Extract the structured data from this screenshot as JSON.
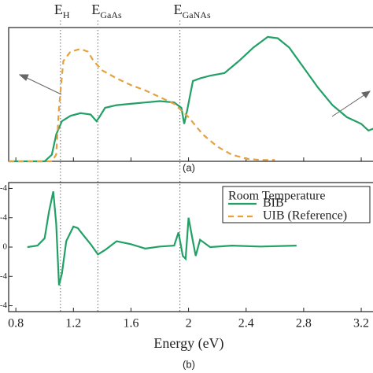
{
  "chart_data": [
    {
      "type": "line",
      "panel_label": "(a)",
      "xlim": [
        0.75,
        3.32
      ],
      "ylim": [
        0,
        1
      ],
      "xticks": [
        0.8,
        1.2,
        1.6,
        2.0,
        2.4,
        2.8,
        3.2
      ],
      "markers": [
        {
          "x": 1.11,
          "label": "E",
          "sub": "H"
        },
        {
          "x": 1.37,
          "label": "E",
          "sub": "GaAs"
        },
        {
          "x": 1.94,
          "label": "E",
          "sub": "GaNAs"
        }
      ],
      "series": [
        {
          "name": "BIB",
          "color": "#22a066",
          "dash": false,
          "x": [
            0.75,
            1.0,
            1.05,
            1.08,
            1.12,
            1.18,
            1.25,
            1.32,
            1.36,
            1.38,
            1.42,
            1.5,
            1.6,
            1.7,
            1.8,
            1.9,
            1.95,
            1.97,
            1.99,
            2.03,
            2.08,
            2.15,
            2.25,
            2.35,
            2.45,
            2.55,
            2.62,
            2.7,
            2.8,
            2.9,
            3.0,
            3.1,
            3.2,
            3.25,
            3.3
          ],
          "values": [
            0,
            0,
            0.05,
            0.2,
            0.3,
            0.34,
            0.36,
            0.35,
            0.3,
            0.33,
            0.4,
            0.42,
            0.43,
            0.44,
            0.45,
            0.44,
            0.4,
            0.28,
            0.38,
            0.6,
            0.62,
            0.64,
            0.66,
            0.75,
            0.85,
            0.93,
            0.92,
            0.85,
            0.7,
            0.55,
            0.42,
            0.33,
            0.28,
            0.23,
            0.25
          ]
        },
        {
          "name": "UIB (Reference)",
          "color": "#e5a040",
          "dash": true,
          "x": [
            0.75,
            1.05,
            1.08,
            1.1,
            1.13,
            1.18,
            1.25,
            1.3,
            1.34,
            1.4,
            1.5,
            1.6,
            1.7,
            1.8,
            1.9,
            2.0,
            2.1,
            2.2,
            2.3,
            2.4,
            2.5,
            2.6
          ],
          "values": [
            0,
            0,
            0.05,
            0.4,
            0.75,
            0.82,
            0.84,
            0.82,
            0.75,
            0.68,
            0.62,
            0.57,
            0.53,
            0.48,
            0.43,
            0.33,
            0.2,
            0.11,
            0.05,
            0.02,
            0.01,
            0.01
          ]
        }
      ]
    },
    {
      "type": "line",
      "panel_label": "(b)",
      "xlabel": "Energy (eV)",
      "legend_title": "Room Temperature",
      "xlim": [
        0.75,
        3.32
      ],
      "ylim": [
        -2.2,
        2.2
      ],
      "xticks": [
        0.8,
        1.2,
        1.6,
        2.0,
        2.4,
        2.8,
        3.2
      ],
      "yticks": [
        {
          "value": 2,
          "label": "-4"
        },
        {
          "value": 1,
          "label": "-4"
        },
        0,
        {
          "value": -1,
          "label": "-4"
        },
        {
          "value": -2,
          "label": "-4"
        }
      ],
      "series": [
        {
          "name": "BIB",
          "color": "#22a066",
          "dash": false,
          "x": [
            0.88,
            0.95,
            1.0,
            1.03,
            1.06,
            1.08,
            1.1,
            1.12,
            1.15,
            1.2,
            1.23,
            1.27,
            1.32,
            1.37,
            1.42,
            1.5,
            1.6,
            1.7,
            1.8,
            1.9,
            1.93,
            1.96,
            1.98,
            2.0,
            2.03,
            2.05,
            2.08,
            2.15,
            2.3,
            2.5,
            2.75
          ],
          "values": [
            0,
            0.05,
            0.3,
            1.2,
            1.9,
            0.8,
            -1.3,
            -0.9,
            0.2,
            0.7,
            0.65,
            0.4,
            0.1,
            -0.25,
            -0.1,
            0.2,
            0.1,
            -0.05,
            0.02,
            0.05,
            0.5,
            -0.3,
            -0.4,
            1.0,
            0.2,
            -0.3,
            0.25,
            0,
            0.05,
            0.02,
            0.05
          ]
        }
      ]
    }
  ]
}
